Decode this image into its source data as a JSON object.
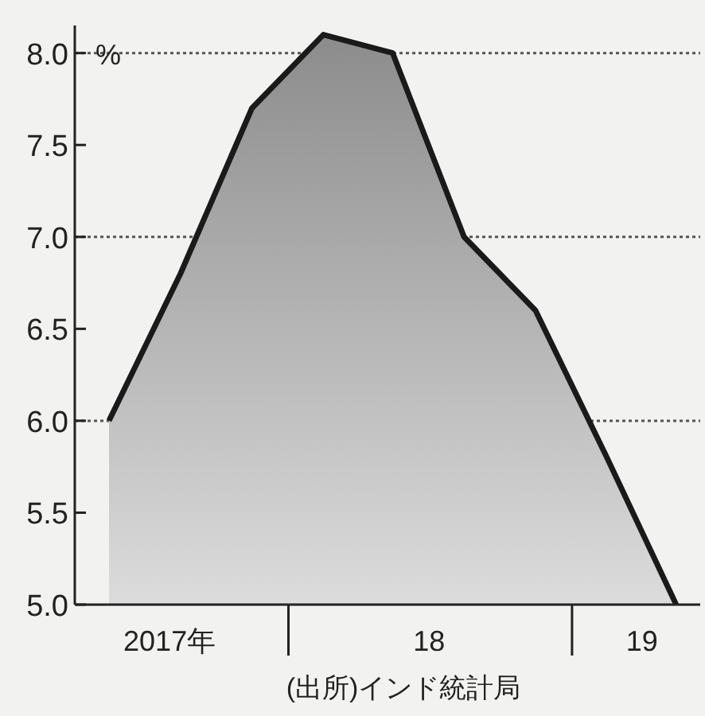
{
  "chart_data": {
    "type": "area",
    "ylabel": "%",
    "x": [
      "2017-05-15",
      "2017-08-15",
      "2017-11-15",
      "2018-02-15",
      "2018-05-15",
      "2018-08-15",
      "2018-11-15",
      "2019-02-15",
      "2019-05-15"
    ],
    "series": [
      {
        "color": "#1a1a1a",
        "values": [
          6.0,
          6.8,
          7.7,
          8.1,
          8.0,
          7.0,
          6.6,
          5.8,
          5.0
        ]
      }
    ],
    "xlim": [
      "2017-04-01",
      "2019-06-15"
    ],
    "xticks": [
      {
        "value": "2017-08-01",
        "label": "2017年"
      },
      {
        "value": "2018-01-01",
        "label": null
      },
      {
        "value": "2018-07-01",
        "label": "18"
      },
      {
        "value": "2019-01-01",
        "label": null
      },
      {
        "value": "2019-04-01",
        "label": "19"
      }
    ],
    "ylim": [
      5,
      8.15
    ],
    "yticks": [
      {
        "value": 5,
        "label": "5.0"
      },
      {
        "value": 5.5,
        "label": "5.5"
      },
      {
        "value": 6,
        "label": "6.0"
      },
      {
        "value": 6.5,
        "label": "6.5"
      },
      {
        "value": 7,
        "label": "7.0"
      },
      {
        "value": 7.5,
        "label": "7.5"
      },
      {
        "value": 8,
        "label": "8.0"
      }
    ],
    "ref_lines": [
      {
        "axis": "y",
        "value": 6,
        "line_style": "dotted"
      },
      {
        "axis": "y",
        "value": 7,
        "line_style": "dotted"
      },
      {
        "axis": "y",
        "value": 8,
        "line_style": "dotted"
      }
    ],
    "annotations": [
      "(出所)インド統計局"
    ]
  }
}
